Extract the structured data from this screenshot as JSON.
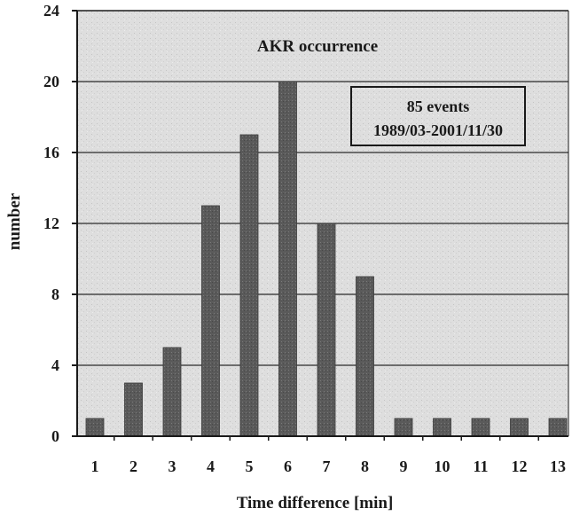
{
  "chart_data": {
    "type": "bar",
    "title": "AKR occurrence",
    "annotation": [
      "85 events",
      "1989/03-2001/11/30"
    ],
    "xlabel": "Time difference [min]",
    "ylabel": "number",
    "categories": [
      "1",
      "2",
      "3",
      "4",
      "5",
      "6",
      "7",
      "8",
      "9",
      "10",
      "11",
      "12",
      "13"
    ],
    "values": [
      1,
      3,
      5,
      13,
      17,
      20,
      12,
      9,
      1,
      1,
      1,
      1,
      1
    ],
    "ylim": [
      0,
      24
    ],
    "yticks": [
      "0",
      "4",
      "8",
      "12",
      "16",
      "20",
      "24"
    ],
    "grid": true,
    "colors": {
      "plot_background": "#dcdcdc",
      "bar": "#5c5c5c",
      "grid": "#2a2a2a"
    }
  }
}
